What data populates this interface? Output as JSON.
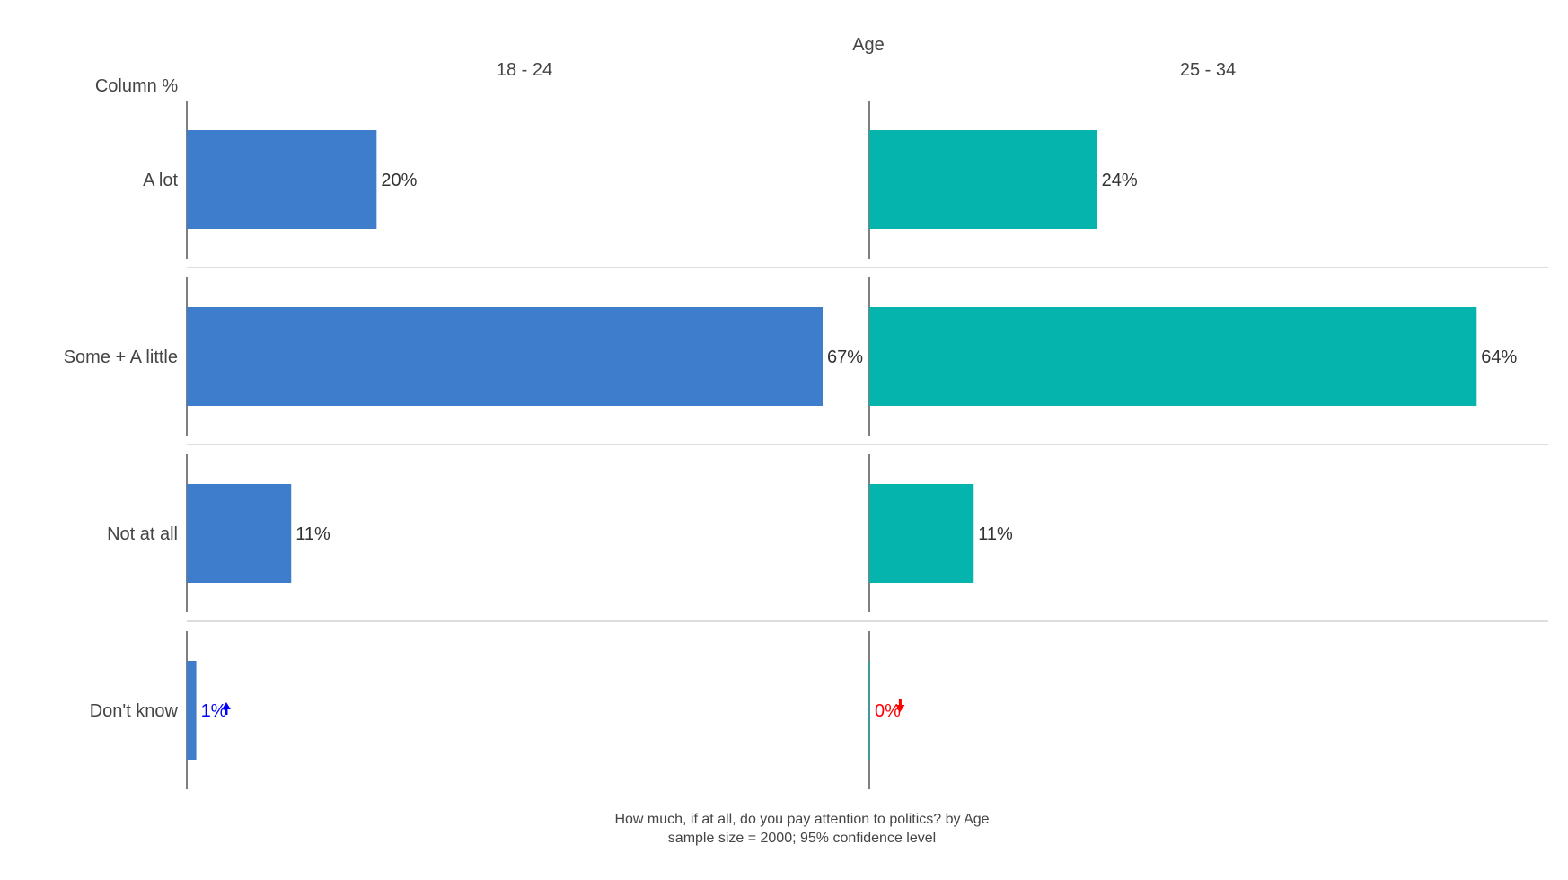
{
  "chart_data": {
    "type": "bar",
    "orientation": "horizontal",
    "facet_title": "Age",
    "corner_label": "Column %",
    "categories": [
      "A lot",
      "Some + A little",
      "Not at all",
      "Don't know"
    ],
    "series": [
      {
        "name": "18 - 24",
        "color": "#3e7dcc",
        "values": [
          20,
          67,
          11,
          1
        ],
        "labels": [
          "20%",
          "67%",
          "11%",
          "1%"
        ],
        "significance": [
          "",
          "",
          "",
          "up"
        ]
      },
      {
        "name": "25 - 34",
        "color": "#05b5ad",
        "values": [
          24,
          64,
          11,
          0
        ],
        "labels": [
          "24%",
          "64%",
          "11%",
          "0%"
        ],
        "significance": [
          "",
          "",
          "",
          "down"
        ]
      }
    ],
    "significance_colors": {
      "up": "#0000ff",
      "down": "#ff0000",
      "none": "#333333"
    },
    "xlim": [
      0,
      67
    ],
    "footnote_lines": [
      "How much, if at all, do you pay attention to politics? by Age",
      "sample size = 2000; 95% confidence level"
    ]
  }
}
